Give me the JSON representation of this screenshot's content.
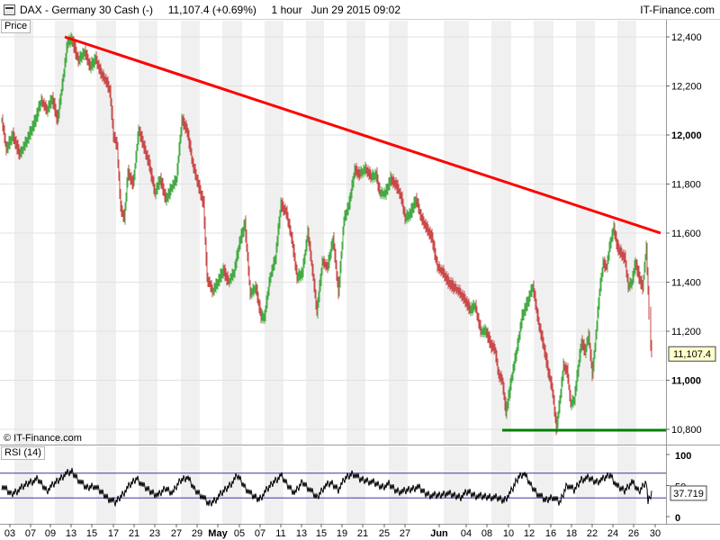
{
  "header": {
    "title": "DAX - Germany 30 Cash (-)     11,107.4 (+0.69%)     1 hour   Jun 29 2015 09:02",
    "brand": "IT-Finance.com"
  },
  "price_panel": {
    "label": "Price",
    "copyright": "© IT-Finance.com",
    "last_price_tag": "11,107.4"
  },
  "rsi_panel": {
    "label": "RSI (14)",
    "last_value_tag": "37.719",
    "y_ticks": [
      "100",
      "50",
      "0"
    ]
  },
  "colors": {
    "up_bar": "#44aa44",
    "down_bar": "#c84a4a",
    "trendline": "#ff0000",
    "support": "#008000",
    "rsi_line": "#000000",
    "rsi_band": "#3a3a9a",
    "stripe": "#f0f0f0"
  },
  "chart_data": [
    {
      "type": "line",
      "title": "DAX - Germany 30 Cash (-)",
      "timeframe": "1 hour",
      "ylim": [
        10700,
        12450
      ],
      "y_ticks": [
        "12,400",
        "12,200",
        "12,000",
        "11,800",
        "11,600",
        "11,400",
        "11,200",
        "11,000",
        "10,800"
      ],
      "bold_ticks": [
        "12,000",
        "11,000"
      ],
      "x_ticks": [
        "03",
        "07",
        "09",
        "13",
        "15",
        "17",
        "21",
        "23",
        "27",
        "29",
        "May",
        "05",
        "07",
        "11",
        "13",
        "15",
        "19",
        "21",
        "25",
        "27",
        "Jun",
        "04",
        "08",
        "10",
        "12",
        "16",
        "18",
        "22",
        "24",
        "26",
        "30"
      ],
      "bold_x_ticks": [
        "May",
        "Jun"
      ],
      "series": [
        {
          "name": "DAX",
          "values": [
            [
              0,
              12060
            ],
            [
              5,
              11940
            ],
            [
              12,
              12000
            ],
            [
              20,
              11920
            ],
            [
              28,
              11980
            ],
            [
              36,
              12050
            ],
            [
              44,
              12140
            ],
            [
              50,
              12100
            ],
            [
              56,
              12150
            ],
            [
              62,
              12060
            ],
            [
              68,
              12230
            ],
            [
              73,
              12380
            ],
            [
              78,
              12390
            ],
            [
              85,
              12300
            ],
            [
              92,
              12340
            ],
            [
              98,
              12280
            ],
            [
              104,
              12310
            ],
            [
              110,
              12250
            ],
            [
              116,
              12220
            ],
            [
              120,
              12180
            ],
            [
              124,
              12000
            ],
            [
              128,
              11950
            ],
            [
              132,
              11700
            ],
            [
              136,
              11660
            ],
            [
              140,
              11850
            ],
            [
              146,
              11800
            ],
            [
              152,
              12020
            ],
            [
              158,
              11950
            ],
            [
              164,
              11880
            ],
            [
              170,
              11760
            ],
            [
              176,
              11820
            ],
            [
              182,
              11740
            ],
            [
              188,
              11780
            ],
            [
              194,
              11820
            ],
            [
              200,
              12060
            ],
            [
              206,
              12020
            ],
            [
              212,
              11880
            ],
            [
              218,
              11800
            ],
            [
              224,
              11720
            ],
            [
              228,
              11420
            ],
            [
              234,
              11360
            ],
            [
              240,
              11400
            ],
            [
              246,
              11450
            ],
            [
              252,
              11400
            ],
            [
              258,
              11440
            ],
            [
              264,
              11560
            ],
            [
              270,
              11640
            ],
            [
              276,
              11350
            ],
            [
              282,
              11380
            ],
            [
              288,
              11260
            ],
            [
              292,
              11260
            ],
            [
              298,
              11420
            ],
            [
              304,
              11500
            ],
            [
              310,
              11720
            ],
            [
              316,
              11680
            ],
            [
              322,
              11580
            ],
            [
              328,
              11420
            ],
            [
              334,
              11440
            ],
            [
              340,
              11600
            ],
            [
              346,
              11420
            ],
            [
              350,
              11280
            ],
            [
              356,
              11480
            ],
            [
              362,
              11460
            ],
            [
              368,
              11580
            ],
            [
              374,
              11360
            ],
            [
              380,
              11650
            ],
            [
              386,
              11720
            ],
            [
              392,
              11860
            ],
            [
              398,
              11840
            ],
            [
              404,
              11860
            ],
            [
              410,
              11830
            ],
            [
              416,
              11840
            ],
            [
              420,
              11760
            ],
            [
              426,
              11760
            ],
            [
              432,
              11820
            ],
            [
              438,
              11800
            ],
            [
              444,
              11740
            ],
            [
              448,
              11660
            ],
            [
              454,
              11680
            ],
            [
              460,
              11740
            ],
            [
              466,
              11660
            ],
            [
              472,
              11620
            ],
            [
              478,
              11580
            ],
            [
              484,
              11460
            ],
            [
              490,
              11440
            ],
            [
              496,
              11400
            ],
            [
              502,
              11380
            ],
            [
              508,
              11360
            ],
            [
              514,
              11330
            ],
            [
              520,
              11290
            ],
            [
              526,
              11300
            ],
            [
              532,
              11200
            ],
            [
              538,
              11200
            ],
            [
              544,
              11140
            ],
            [
              548,
              11120
            ],
            [
              552,
              11020
            ],
            [
              556,
              11000
            ],
            [
              560,
              10870
            ],
            [
              566,
              11000
            ],
            [
              572,
              11120
            ],
            [
              578,
              11260
            ],
            [
              584,
              11320
            ],
            [
              590,
              11380
            ],
            [
              596,
              11240
            ],
            [
              602,
              11140
            ],
            [
              608,
              11020
            ],
            [
              612,
              10950
            ],
            [
              616,
              10800
            ],
            [
              620,
              10920
            ],
            [
              624,
              11060
            ],
            [
              628,
              11040
            ],
            [
              632,
              10900
            ],
            [
              636,
              10920
            ],
            [
              640,
              11040
            ],
            [
              644,
              11160
            ],
            [
              648,
              11120
            ],
            [
              652,
              11180
            ],
            [
              656,
              11020
            ],
            [
              660,
              11180
            ],
            [
              664,
              11360
            ],
            [
              668,
              11480
            ],
            [
              672,
              11460
            ],
            [
              676,
              11560
            ],
            [
              680,
              11620
            ],
            [
              684,
              11540
            ],
            [
              688,
              11520
            ],
            [
              692,
              11500
            ],
            [
              696,
              11380
            ],
            [
              700,
              11400
            ],
            [
              704,
              11480
            ],
            [
              708,
              11420
            ],
            [
              712,
              11380
            ],
            [
              716,
              11540
            ],
            [
              720,
              11180
            ],
            [
              722,
              11107
            ]
          ]
        }
      ]
    },
    {
      "type": "line",
      "title": "RSI (14)",
      "ylim": [
        0,
        100
      ],
      "y_ticks": [
        "100",
        "50",
        "0"
      ],
      "bands": [
        70,
        30
      ],
      "series": [
        {
          "name": "RSI (14)",
          "values": [
            [
              0,
              50
            ],
            [
              10,
              36
            ],
            [
              20,
              44
            ],
            [
              30,
              55
            ],
            [
              40,
              60
            ],
            [
              50,
              42
            ],
            [
              60,
              55
            ],
            [
              70,
              68
            ],
            [
              78,
              72
            ],
            [
              86,
              58
            ],
            [
              94,
              46
            ],
            [
              102,
              50
            ],
            [
              110,
              40
            ],
            [
              118,
              30
            ],
            [
              126,
              22
            ],
            [
              134,
              36
            ],
            [
              142,
              50
            ],
            [
              150,
              62
            ],
            [
              158,
              48
            ],
            [
              166,
              40
            ],
            [
              174,
              34
            ],
            [
              182,
              46
            ],
            [
              190,
              38
            ],
            [
              198,
              58
            ],
            [
              206,
              64
            ],
            [
              214,
              44
            ],
            [
              222,
              34
            ],
            [
              230,
              20
            ],
            [
              238,
              28
            ],
            [
              246,
              40
            ],
            [
              254,
              52
            ],
            [
              262,
              66
            ],
            [
              270,
              48
            ],
            [
              278,
              34
            ],
            [
              286,
              28
            ],
            [
              294,
              42
            ],
            [
              302,
              56
            ],
            [
              310,
              66
            ],
            [
              318,
              50
            ],
            [
              326,
              38
            ],
            [
              334,
              56
            ],
            [
              342,
              44
            ],
            [
              350,
              30
            ],
            [
              358,
              48
            ],
            [
              366,
              54
            ],
            [
              374,
              44
            ],
            [
              382,
              62
            ],
            [
              390,
              70
            ],
            [
              398,
              60
            ],
            [
              406,
              58
            ],
            [
              414,
              54
            ],
            [
              422,
              48
            ],
            [
              430,
              52
            ],
            [
              438,
              42
            ],
            [
              446,
              40
            ],
            [
              454,
              44
            ],
            [
              462,
              48
            ],
            [
              470,
              38
            ],
            [
              478,
              34
            ],
            [
              486,
              34
            ],
            [
              494,
              38
            ],
            [
              502,
              34
            ],
            [
              510,
              32
            ],
            [
              518,
              40
            ],
            [
              526,
              34
            ],
            [
              534,
              32
            ],
            [
              542,
              32
            ],
            [
              550,
              30
            ],
            [
              558,
              26
            ],
            [
              566,
              40
            ],
            [
              574,
              64
            ],
            [
              580,
              70
            ],
            [
              588,
              50
            ],
            [
              596,
              36
            ],
            [
              604,
              26
            ],
            [
              612,
              32
            ],
            [
              620,
              22
            ],
            [
              628,
              52
            ],
            [
              636,
              42
            ],
            [
              644,
              60
            ],
            [
              652,
              62
            ],
            [
              660,
              56
            ],
            [
              668,
              60
            ],
            [
              676,
              68
            ],
            [
              684,
              48
            ],
            [
              692,
              42
            ],
            [
              700,
              56
            ],
            [
              708,
              40
            ],
            [
              716,
              58
            ],
            [
              718,
              22
            ],
            [
              722,
              38
            ]
          ]
        }
      ]
    }
  ]
}
